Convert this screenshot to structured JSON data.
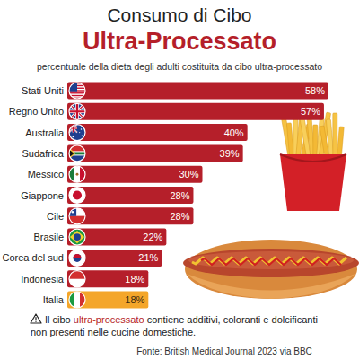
{
  "chart_data": {
    "type": "bar",
    "orientation": "horizontal",
    "title": [
      "Consumo di Cibo",
      "Ultra-Processato"
    ],
    "subtitle": "percentuale della dieta degli adulti costituita da cibo ultra-processato",
    "categories": [
      "Stati Uniti",
      "Regno Unito",
      "Australia",
      "Sudafrica",
      "Messico",
      "Giappone",
      "Cile",
      "Brasile",
      "Corea del sud",
      "Indonesia",
      "Italia"
    ],
    "values": [
      58,
      57,
      40,
      39,
      30,
      28,
      28,
      22,
      21,
      18,
      18
    ],
    "value_labels": [
      "58%",
      "57%",
      "40%",
      "39%",
      "30%",
      "28%",
      "28%",
      "22%",
      "21%",
      "18%",
      "18%"
    ],
    "colors": [
      "#b51f2a",
      "#b51f2a",
      "#b51f2a",
      "#b51f2a",
      "#b51f2a",
      "#b51f2a",
      "#b51f2a",
      "#b51f2a",
      "#b51f2a",
      "#b51f2a",
      "#f4a62a"
    ],
    "xlim": [
      0,
      60
    ],
    "data_labels": true,
    "tick_labels": "y",
    "grid": false,
    "annotations": [
      "Il cibo ",
      "ultra-processato",
      " contiene additivi, coloranti e dolcificanti",
      "non presenti nelle cucine domestiche."
    ],
    "source": "Fonte: British Medical Journal 2023 via BBC"
  }
}
